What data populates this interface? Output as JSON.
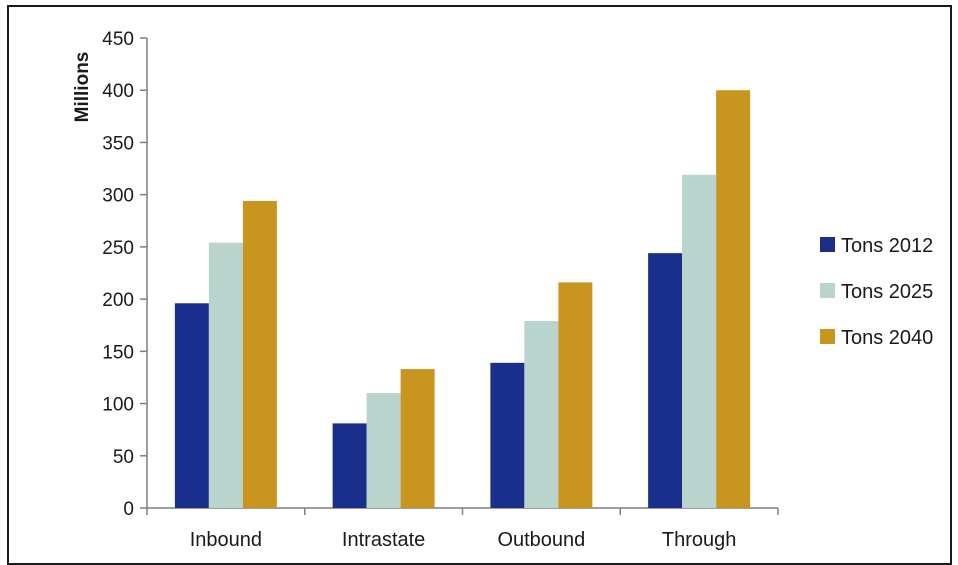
{
  "chart_data": {
    "type": "bar",
    "title": "",
    "xlabel": "",
    "ylabel": "Millions",
    "ylim": [
      0,
      450
    ],
    "yticks": [
      0,
      50,
      100,
      150,
      200,
      250,
      300,
      350,
      400,
      450
    ],
    "categories": [
      "Inbound",
      "Intrastate",
      "Outbound",
      "Through"
    ],
    "series": [
      {
        "name": "Tons 2012",
        "color": "#1a2f8c",
        "values": [
          196,
          81,
          139,
          244
        ]
      },
      {
        "name": "Tons 2025",
        "color": "#b8d4cc",
        "values": [
          254,
          110,
          179,
          319
        ]
      },
      {
        "name": "Tons 2040",
        "color": "#c8961e",
        "values": [
          294,
          133,
          216,
          400
        ]
      }
    ],
    "grid": false,
    "legend_position": "right"
  }
}
